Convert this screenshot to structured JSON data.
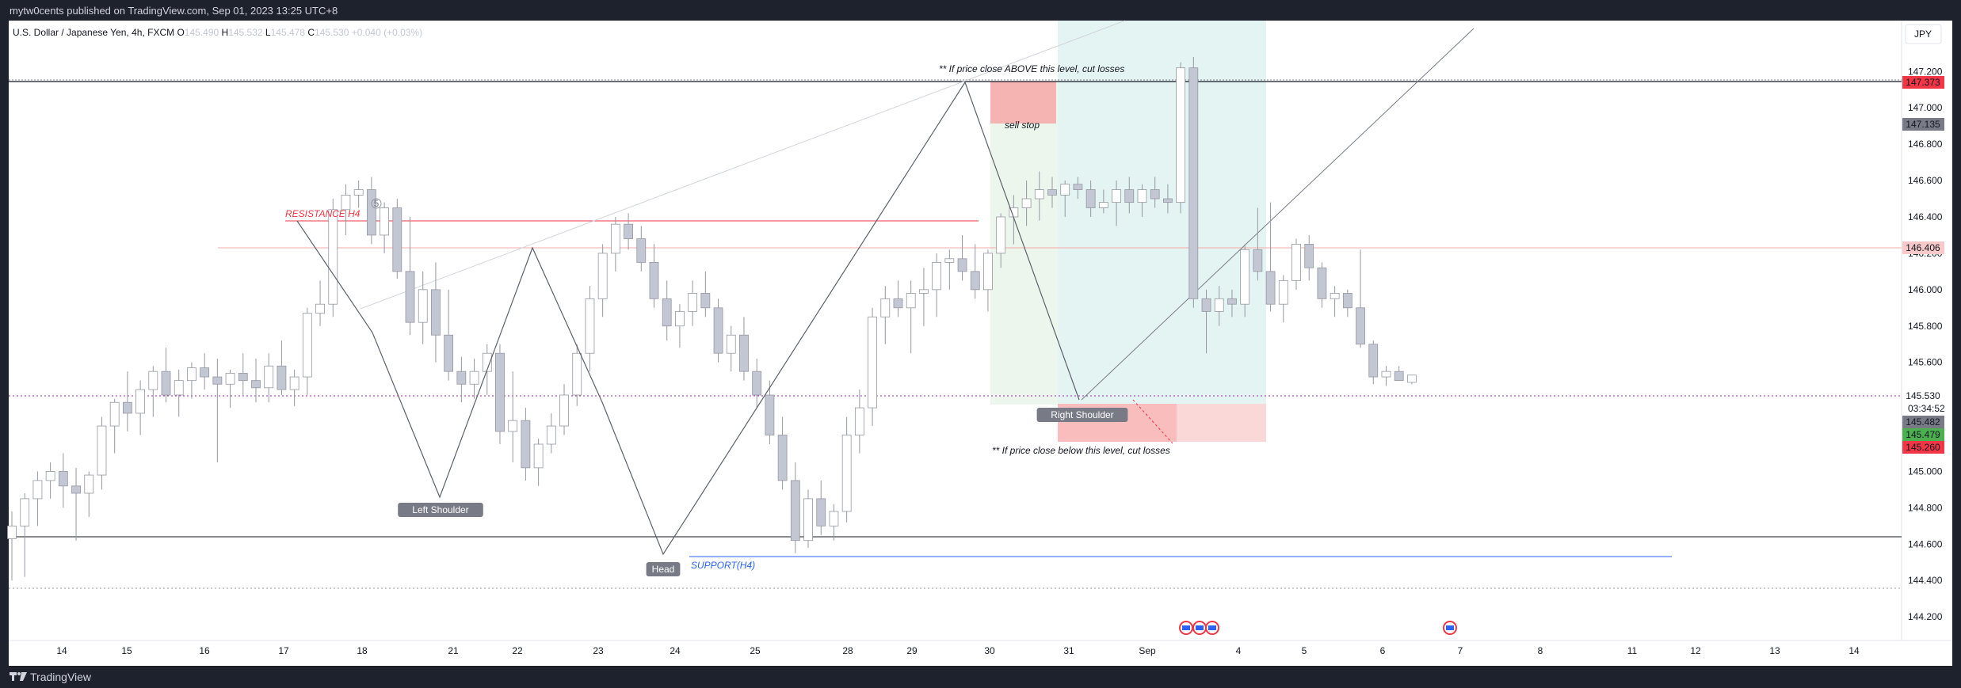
{
  "header": {
    "publisher": "mytw0cents published on TradingView.com, Sep 01, 2023 13:25 UTC+8"
  },
  "footer": {
    "brand": "TradingView"
  },
  "legend": {
    "symbol": "U.S. Dollar / Japanese Yen, 4h, FXCM",
    "o_label": "O",
    "o_value": "145.490",
    "h_label": "H",
    "h_value": "145.532",
    "l_label": "L",
    "l_value": "145.478",
    "c_label": "C",
    "c_value": "145.530",
    "change": "+0.040 (+0.03%)"
  },
  "currency_button": "JPY",
  "colors": {
    "up": "#ffffff",
    "down": "#c3c6d3",
    "pattern": "#5d606b",
    "resistance": "#f23645",
    "support": "#2962ff",
    "profit_zone": "#b2dfdb",
    "loss_zone": "#f7a8a8"
  },
  "chart_data": {
    "type": "candlestick",
    "symbol": "USDJPY",
    "interval": "4h",
    "ylim": [
      144.07,
      147.48
    ],
    "y_ticks": [
      "144.200",
      "144.400",
      "144.600",
      "144.800",
      "145.000",
      "145.200",
      "145.400",
      "145.600",
      "145.800",
      "146.000",
      "146.200",
      "146.400",
      "146.600",
      "146.800",
      "147.000",
      "147.200"
    ],
    "x_tick_labels": [
      "14",
      "15",
      "16",
      "17",
      "18",
      "21",
      "22",
      "23",
      "24",
      "25",
      "28",
      "29",
      "30",
      "31",
      "Sep",
      "4",
      "5",
      "6",
      "7",
      "8",
      "11",
      "12",
      "13",
      "14"
    ],
    "candles": [
      [
        144.63,
        144.78,
        144.4,
        144.7
      ],
      [
        144.7,
        144.88,
        144.42,
        144.85
      ],
      [
        144.85,
        145.0,
        144.7,
        144.95
      ],
      [
        144.95,
        145.05,
        144.85,
        145.0
      ],
      [
        145.0,
        145.1,
        144.8,
        144.92
      ],
      [
        144.92,
        145.02,
        144.62,
        144.88
      ],
      [
        144.88,
        145.0,
        144.75,
        144.98
      ],
      [
        144.98,
        145.3,
        144.9,
        145.25
      ],
      [
        145.25,
        145.4,
        145.1,
        145.38
      ],
      [
        145.38,
        145.55,
        145.22,
        145.32
      ],
      [
        145.32,
        145.5,
        145.2,
        145.45
      ],
      [
        145.45,
        145.58,
        145.3,
        145.55
      ],
      [
        145.55,
        145.68,
        145.38,
        145.42
      ],
      [
        145.42,
        145.56,
        145.3,
        145.5
      ],
      [
        145.5,
        145.6,
        145.4,
        145.57
      ],
      [
        145.57,
        145.65,
        145.45,
        145.52
      ],
      [
        145.52,
        145.62,
        145.05,
        145.48
      ],
      [
        145.48,
        145.56,
        145.35,
        145.54
      ],
      [
        145.54,
        145.65,
        145.42,
        145.5
      ],
      [
        145.5,
        145.62,
        145.38,
        145.46
      ],
      [
        145.46,
        145.65,
        145.38,
        145.58
      ],
      [
        145.58,
        145.72,
        145.42,
        145.45
      ],
      [
        145.45,
        145.56,
        145.36,
        145.52
      ],
      [
        145.52,
        145.9,
        145.42,
        145.87
      ],
      [
        145.87,
        146.05,
        145.8,
        145.92
      ],
      [
        145.92,
        146.5,
        145.85,
        146.44
      ],
      [
        146.44,
        146.58,
        146.3,
        146.52
      ],
      [
        146.52,
        146.6,
        146.45,
        146.55
      ],
      [
        146.55,
        146.62,
        146.25,
        146.3
      ],
      [
        146.3,
        146.48,
        146.2,
        146.45
      ],
      [
        146.45,
        146.5,
        146.06,
        146.1
      ],
      [
        146.1,
        146.4,
        145.75,
        145.82
      ],
      [
        145.82,
        146.1,
        145.7,
        146.0
      ],
      [
        146.0,
        146.15,
        145.6,
        145.75
      ],
      [
        145.75,
        146.0,
        145.5,
        145.55
      ],
      [
        145.55,
        145.63,
        145.38,
        145.48
      ],
      [
        145.48,
        145.62,
        145.4,
        145.55
      ],
      [
        145.55,
        145.7,
        145.42,
        145.65
      ],
      [
        145.65,
        145.7,
        145.15,
        145.22
      ],
      [
        145.22,
        145.55,
        145.05,
        145.28
      ],
      [
        145.28,
        145.35,
        144.95,
        145.02
      ],
      [
        145.02,
        145.18,
        144.92,
        145.15
      ],
      [
        145.15,
        145.32,
        145.1,
        145.25
      ],
      [
        145.25,
        145.48,
        145.2,
        145.42
      ],
      [
        145.42,
        145.7,
        145.36,
        145.65
      ],
      [
        145.65,
        146.02,
        145.55,
        145.95
      ],
      [
        145.95,
        146.25,
        145.85,
        146.2
      ],
      [
        146.2,
        146.4,
        146.1,
        146.36
      ],
      [
        146.36,
        146.42,
        146.22,
        146.28
      ],
      [
        146.28,
        146.35,
        146.1,
        146.15
      ],
      [
        146.15,
        146.25,
        145.9,
        145.95
      ],
      [
        145.95,
        146.05,
        145.72,
        145.8
      ],
      [
        145.8,
        145.92,
        145.68,
        145.88
      ],
      [
        145.88,
        146.05,
        145.8,
        145.98
      ],
      [
        145.98,
        146.1,
        145.85,
        145.9
      ],
      [
        145.9,
        145.95,
        145.6,
        145.65
      ],
      [
        145.65,
        145.8,
        145.55,
        145.75
      ],
      [
        145.75,
        145.85,
        145.5,
        145.55
      ],
      [
        145.55,
        145.62,
        145.35,
        145.42
      ],
      [
        145.42,
        145.5,
        145.15,
        145.2
      ],
      [
        145.2,
        145.3,
        144.9,
        144.95
      ],
      [
        144.95,
        145.05,
        144.55,
        144.62
      ],
      [
        144.62,
        144.9,
        144.58,
        144.85
      ],
      [
        144.85,
        144.95,
        144.65,
        144.7
      ],
      [
        144.7,
        144.82,
        144.62,
        144.78
      ],
      [
        144.78,
        145.3,
        144.72,
        145.2
      ],
      [
        145.2,
        145.45,
        145.1,
        145.35
      ],
      [
        145.35,
        145.9,
        145.25,
        145.85
      ],
      [
        145.85,
        146.02,
        145.7,
        145.95
      ],
      [
        145.95,
        146.05,
        145.85,
        145.9
      ],
      [
        145.9,
        146.05,
        145.65,
        145.98
      ],
      [
        145.98,
        146.12,
        145.8,
        146.0
      ],
      [
        146.0,
        146.2,
        145.85,
        146.15
      ],
      [
        146.15,
        146.22,
        146.0,
        146.17
      ],
      [
        146.17,
        146.3,
        146.05,
        146.1
      ],
      [
        146.1,
        146.25,
        145.95,
        146.0
      ],
      [
        146.0,
        146.22,
        145.88,
        146.2
      ],
      [
        146.2,
        146.42,
        146.12,
        146.4
      ],
      [
        146.4,
        146.52,
        146.25,
        146.45
      ],
      [
        146.45,
        146.6,
        146.35,
        146.5
      ],
      [
        146.5,
        146.65,
        146.38,
        146.55
      ],
      [
        146.55,
        146.62,
        146.45,
        146.52
      ],
      [
        146.52,
        146.6,
        146.4,
        146.58
      ],
      [
        146.58,
        146.62,
        146.5,
        146.55
      ],
      [
        146.55,
        146.6,
        146.4,
        146.45
      ],
      [
        146.45,
        146.55,
        146.42,
        146.48
      ],
      [
        146.48,
        146.6,
        146.35,
        146.55
      ],
      [
        146.55,
        146.62,
        146.42,
        146.48
      ],
      [
        146.48,
        146.58,
        146.4,
        146.55
      ],
      [
        146.55,
        146.62,
        146.45,
        146.5
      ],
      [
        146.5,
        146.58,
        146.42,
        146.48
      ],
      [
        146.48,
        147.25,
        146.42,
        147.22
      ],
      [
        147.22,
        147.28,
        145.9,
        145.95
      ],
      [
        145.95,
        146.0,
        145.65,
        145.88
      ],
      [
        145.88,
        146.02,
        145.8,
        145.95
      ],
      [
        145.95,
        146.0,
        145.85,
        145.92
      ],
      [
        145.92,
        146.25,
        145.85,
        146.22
      ],
      [
        146.22,
        146.45,
        146.05,
        146.1
      ],
      [
        146.1,
        146.48,
        145.88,
        145.92
      ],
      [
        145.92,
        146.08,
        145.82,
        146.05
      ],
      [
        146.05,
        146.28,
        146.0,
        146.25
      ],
      [
        146.25,
        146.3,
        146.05,
        146.12
      ],
      [
        146.12,
        146.15,
        145.9,
        145.95
      ],
      [
        145.95,
        146.02,
        145.85,
        145.98
      ],
      [
        145.98,
        146.0,
        145.85,
        145.9
      ],
      [
        145.9,
        146.22,
        145.68,
        145.7
      ],
      [
        145.7,
        145.72,
        145.48,
        145.52
      ],
      [
        145.52,
        145.58,
        145.47,
        145.55
      ],
      [
        145.55,
        145.58,
        145.5,
        145.5
      ],
      [
        145.49,
        145.53,
        145.48,
        145.53
      ]
    ],
    "horizontal_levels": [
      {
        "value": 147.373,
        "label": "147.373"
      },
      {
        "value": 147.135,
        "label": "147.135"
      },
      {
        "value": 146.406,
        "label": "146.406"
      },
      {
        "value": 145.53,
        "label": "145.530"
      },
      {
        "value": 145.482,
        "label": "145.482"
      },
      {
        "value": 145.479,
        "label": "145.479"
      },
      {
        "value": 145.26,
        "label": "145.260"
      }
    ],
    "countdown": "03:34:52",
    "head_and_shoulders": [
      {
        "label": "Left Shoulder",
        "value": 144.92
      },
      {
        "label": "Head",
        "value": 144.58
      },
      {
        "label": "Right Shoulder",
        "value": 145.53
      }
    ],
    "annotations": {
      "above": "** If price close ABOVE this level, cut losses",
      "below": "** If price close below this level, cut losses",
      "sell_stop": "sell stop",
      "resistance": "RESISTANCE H4",
      "support": "SUPPORT(H4)",
      "marker": "5"
    }
  }
}
